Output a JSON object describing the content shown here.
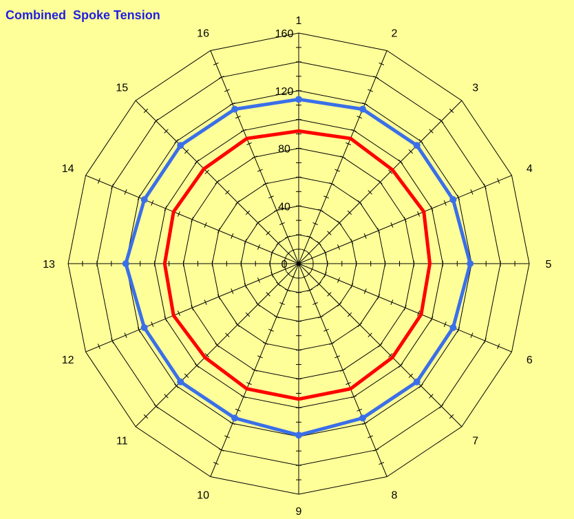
{
  "chart_data": {
    "type": "radar",
    "title": "Combined  Spoke Tension",
    "categories": [
      "1",
      "2",
      "3",
      "4",
      "5",
      "6",
      "7",
      "8",
      "9",
      "10",
      "11",
      "12",
      "13",
      "14",
      "15",
      "16"
    ],
    "r_range": [
      0,
      160
    ],
    "r_ticks": [
      "0",
      "40",
      "80",
      "120",
      "160"
    ],
    "grid": true,
    "series": [
      {
        "color": "#3B6FE8",
        "marker": true,
        "values": [
          114,
          116,
          116,
          116,
          119,
          116,
          116,
          116,
          119,
          116,
          116,
          116,
          120,
          116,
          116,
          116
        ]
      },
      {
        "color": "#FF0000",
        "marker": false,
        "values": [
          92,
          94,
          92,
          94,
          91,
          92,
          92,
          94,
          94,
          94,
          92,
          94,
          93,
          94,
          93,
          94
        ]
      }
    ]
  }
}
